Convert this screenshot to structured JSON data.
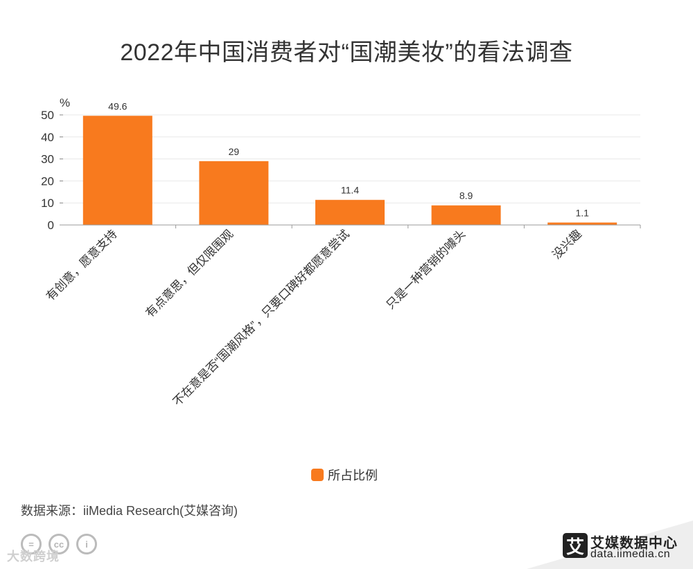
{
  "title": "2022年中国消费者对“国潮美妆”的看法调查",
  "chart_data": {
    "type": "bar",
    "title": "2022年中国消费者对“国潮美妆”的看法调查",
    "categories": [
      "有创意，愿意支持",
      "有点意思，但仅限围观",
      "不在意是否“国潮风格”，只要口碑好都愿意尝试",
      "只是一种营销的噱头",
      "没兴趣"
    ],
    "series": [
      {
        "name": "所占比例",
        "values": [
          49.6,
          29,
          11.4,
          8.9,
          1.1
        ]
      }
    ],
    "value_labels": [
      "49.6",
      "29",
      "11.4",
      "8.9",
      "1.1"
    ],
    "y_unit": "%",
    "ylim": [
      0,
      50
    ],
    "yticks": [
      0,
      10,
      20,
      30,
      40,
      50
    ],
    "grid": true,
    "legend": "bottom-center",
    "bar_color": "#f87a1e"
  },
  "legend": {
    "label": "所占比例",
    "color": "#f87a1e"
  },
  "source": "数据来源：iiMedia Research(艾媒咨询)",
  "watermark": "大数跨境",
  "license_icons": [
    "=",
    "cc",
    "i"
  ],
  "brand": {
    "logo_char": "艾",
    "name": "艾媒数据中心",
    "url": "data.iimedia.cn"
  }
}
